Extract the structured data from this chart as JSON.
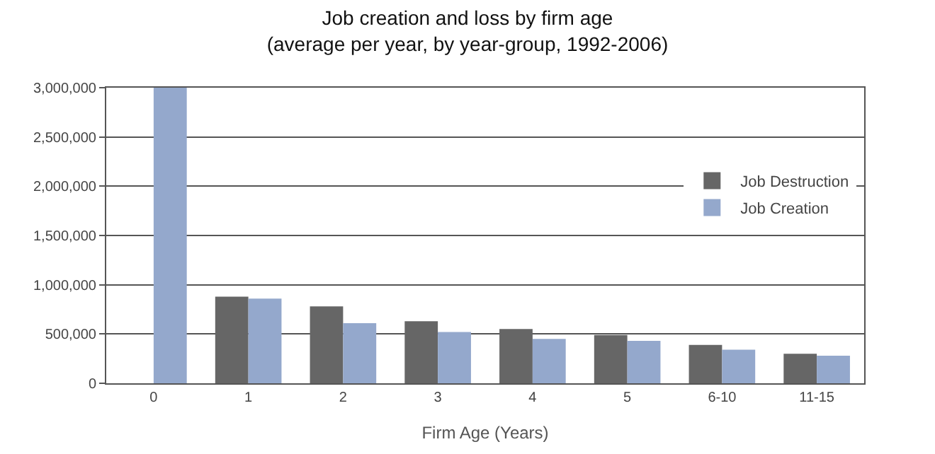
{
  "chart_data": {
    "type": "bar",
    "title": "Job creation and loss by firm age\n(average per year, by year-group, 1992-2006)",
    "xlabel": "Firm Age (Years)",
    "categories": [
      "0",
      "1",
      "2",
      "3",
      "4",
      "5",
      "6-10",
      "11-15"
    ],
    "series": [
      {
        "name": "Job Destruction",
        "color": "#666666",
        "values": [
          null,
          880000,
          780000,
          630000,
          550000,
          490000,
          390000,
          300000
        ]
      },
      {
        "name": "Job Creation",
        "color": "#94a8cc",
        "values": [
          3000000,
          860000,
          610000,
          520000,
          450000,
          430000,
          340000,
          280000
        ]
      }
    ],
    "ylim": [
      0,
      3000000
    ],
    "yticks": [
      {
        "value": 0,
        "label": "0"
      },
      {
        "value": 500000,
        "label": "500,000"
      },
      {
        "value": 1000000,
        "label": "1,000,000"
      },
      {
        "value": 1500000,
        "label": "1,500,000"
      },
      {
        "value": 2000000,
        "label": "2,000,000"
      },
      {
        "value": 2500000,
        "label": "2,500,000"
      },
      {
        "value": 3000000,
        "label": "3,000,000"
      }
    ],
    "grid": "y",
    "legend": "right"
  }
}
